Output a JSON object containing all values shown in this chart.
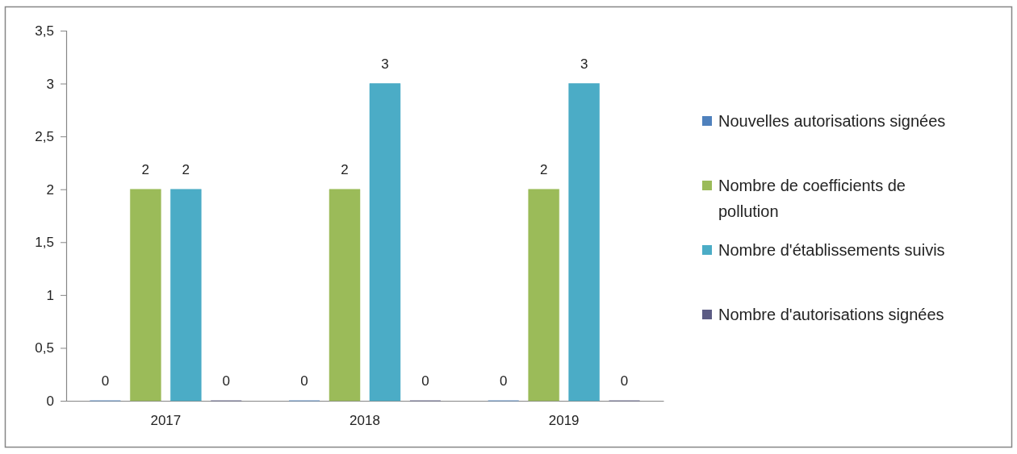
{
  "chart_data": {
    "type": "bar",
    "categories": [
      "2017",
      "2018",
      "2019"
    ],
    "series": [
      {
        "name": "Nouvelles autorisations signées",
        "color": "#4f81bd",
        "values": [
          0,
          0,
          0
        ]
      },
      {
        "name": "Nombre de coefficients de pollution",
        "color": "#9bbb59",
        "values": [
          2,
          2,
          2
        ]
      },
      {
        "name": "Nombre d'établissements suivis",
        "color": "#4bacc6",
        "values": [
          2,
          3,
          3
        ]
      },
      {
        "name": "Nombre d'autorisations signées",
        "color": "#5c5c84",
        "values": [
          0,
          0,
          0
        ]
      }
    ],
    "ylim": [
      0,
      3.5
    ],
    "yticks": [
      0,
      {
        "value": 0.5,
        "label": "0,5"
      },
      1,
      {
        "value": 1.5,
        "label": "1,5"
      },
      2,
      {
        "value": 2.5,
        "label": "2,5"
      },
      3,
      {
        "value": 3.5,
        "label": "3,5"
      }
    ],
    "data_labels": true,
    "legend": "right",
    "grid": false
  }
}
